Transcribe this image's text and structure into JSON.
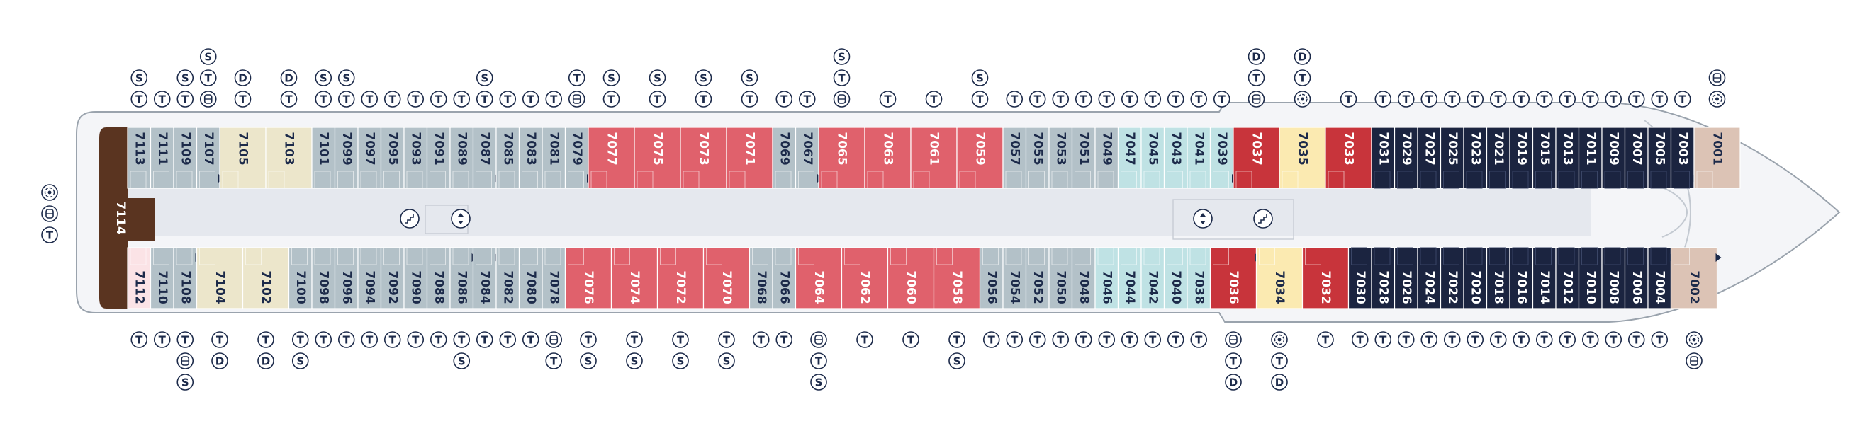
{
  "colors": {
    "suite_red": "#c8343b",
    "premium_pink": "#e0616c",
    "navy": "#1b2440",
    "slate": "#b3c1c8",
    "beige": "#ece6cb",
    "aqua": "#bfe2e4",
    "yellow": "#fbeab1",
    "tan": "#dcc3b5",
    "brown": "#5a3420",
    "light_pink": "#fbe3e6",
    "corridor": "#e5e8ee",
    "outline": "#9aa3ad",
    "symbol": "#1c2a4a"
  },
  "legend_symbols": {
    "T": "twin-beds-symbol",
    "S": "sofa-bed-symbol",
    "D": "double-bed-symbol",
    "accessible": "accessible-cabin-symbol",
    "connecting": "connecting-cabin-symbol"
  },
  "aft_cabin": {
    "label": "7114",
    "color": "brown"
  },
  "aft_symbols": [
    "connecting",
    "accessible",
    "T"
  ],
  "top_row": [
    {
      "label": "7113",
      "color": "slate",
      "syms": [
        "S",
        "T"
      ]
    },
    {
      "label": "7111",
      "color": "slate",
      "syms": [
        "T"
      ]
    },
    {
      "label": "7109",
      "color": "slate",
      "syms": [
        "S",
        "T"
      ]
    },
    {
      "label": "7107",
      "color": "slate",
      "syms": [
        "S",
        "T",
        "accessible"
      ],
      "arrow": true
    },
    {
      "label": "7105",
      "color": "beige",
      "wide": true,
      "syms": [
        "D",
        "T"
      ]
    },
    {
      "label": "7103",
      "color": "beige",
      "wide": true,
      "syms": [
        "D",
        "T"
      ]
    },
    {
      "label": "7101",
      "color": "slate",
      "syms": [
        "S",
        "T"
      ]
    },
    {
      "label": "7099",
      "color": "slate",
      "syms": [
        "S",
        "T"
      ]
    },
    {
      "label": "7097",
      "color": "slate",
      "syms": [
        "T"
      ]
    },
    {
      "label": "7095",
      "color": "slate",
      "syms": [
        "T"
      ]
    },
    {
      "label": "7093",
      "color": "slate",
      "syms": [
        "T"
      ]
    },
    {
      "label": "7091",
      "color": "slate",
      "syms": [
        "T"
      ]
    },
    {
      "label": "7089",
      "color": "slate",
      "syms": [
        "T"
      ]
    },
    {
      "label": "7087",
      "color": "slate",
      "syms": [
        "S",
        "T"
      ],
      "arrow": true
    },
    {
      "label": "7085",
      "color": "slate",
      "syms": [
        "T"
      ]
    },
    {
      "label": "7083",
      "color": "slate",
      "syms": [
        "T"
      ]
    },
    {
      "label": "7081",
      "color": "slate",
      "syms": [
        "T"
      ]
    },
    {
      "label": "7079",
      "color": "slate",
      "syms": [
        "T",
        "accessible"
      ],
      "arrow": true
    },
    {
      "label": "7077",
      "color": "premium_pink",
      "wide": true,
      "syms": [
        "S",
        "T"
      ]
    },
    {
      "label": "7075",
      "color": "premium_pink",
      "wide": true,
      "syms": [
        "S",
        "T"
      ]
    },
    {
      "label": "7073",
      "color": "premium_pink",
      "wide": true,
      "syms": [
        "S",
        "T"
      ]
    },
    {
      "label": "7071",
      "color": "premium_pink",
      "wide": true,
      "syms": [
        "S",
        "T"
      ]
    },
    {
      "label": "7069",
      "color": "slate",
      "syms": [
        "T"
      ]
    },
    {
      "label": "7067",
      "color": "slate",
      "syms": [
        "T"
      ],
      "arrow": true
    },
    {
      "label": "7065",
      "color": "premium_pink",
      "wide": true,
      "syms": [
        "S",
        "T",
        "accessible"
      ]
    },
    {
      "label": "7063",
      "color": "premium_pink",
      "wide": true,
      "syms": [
        "T"
      ]
    },
    {
      "label": "7061",
      "color": "premium_pink",
      "wide": true,
      "syms": [
        "T"
      ]
    },
    {
      "label": "7059",
      "color": "premium_pink",
      "wide": true,
      "syms": [
        "S",
        "T"
      ]
    },
    {
      "label": "7057",
      "color": "slate",
      "syms": [
        "T"
      ]
    },
    {
      "label": "7055",
      "color": "slate",
      "syms": [
        "T"
      ]
    },
    {
      "label": "7053",
      "color": "slate",
      "syms": [
        "T"
      ]
    },
    {
      "label": "7051",
      "color": "slate",
      "syms": [
        "T"
      ]
    },
    {
      "label": "7049",
      "color": "slate",
      "syms": [
        "T"
      ]
    },
    {
      "label": "7047",
      "color": "aqua",
      "syms": [
        "T"
      ]
    },
    {
      "label": "7045",
      "color": "aqua",
      "syms": [
        "T"
      ]
    },
    {
      "label": "7043",
      "color": "aqua",
      "syms": [
        "T"
      ]
    },
    {
      "label": "7041",
      "color": "aqua",
      "syms": [
        "T"
      ]
    },
    {
      "label": "7039",
      "color": "aqua",
      "syms": [
        "T"
      ],
      "arrow": true
    },
    {
      "label": "7037",
      "color": "suite_red",
      "wide": true,
      "syms": [
        "D",
        "T",
        "accessible"
      ]
    },
    {
      "label": "7035",
      "color": "yellow",
      "wide": true,
      "syms": [
        "D",
        "T",
        "connecting"
      ]
    },
    {
      "label": "7033",
      "color": "suite_red",
      "wide": true,
      "syms": [
        "T"
      ]
    },
    {
      "label": "7031",
      "color": "navy",
      "syms": [
        "T"
      ]
    },
    {
      "label": "7029",
      "color": "navy",
      "syms": [
        "T"
      ]
    },
    {
      "label": "7027",
      "color": "navy",
      "syms": [
        "T"
      ]
    },
    {
      "label": "7025",
      "color": "navy",
      "syms": [
        "T"
      ]
    },
    {
      "label": "7023",
      "color": "navy",
      "syms": [
        "T"
      ]
    },
    {
      "label": "7021",
      "color": "navy",
      "syms": [
        "T"
      ]
    },
    {
      "label": "7019",
      "color": "navy",
      "syms": [
        "T"
      ]
    },
    {
      "label": "7015",
      "color": "navy",
      "syms": [
        "T"
      ]
    },
    {
      "label": "7013",
      "color": "navy",
      "syms": [
        "T"
      ]
    },
    {
      "label": "7011",
      "color": "navy",
      "syms": [
        "T"
      ]
    },
    {
      "label": "7009",
      "color": "navy",
      "syms": [
        "T"
      ]
    },
    {
      "label": "7007",
      "color": "navy",
      "syms": [
        "T"
      ]
    },
    {
      "label": "7005",
      "color": "navy",
      "syms": [
        "T"
      ]
    },
    {
      "label": "7003",
      "color": "navy",
      "syms": [
        "T"
      ],
      "arrow": true
    },
    {
      "label": "7001",
      "color": "tan",
      "wide": true,
      "syms": [
        "accessible",
        "connecting"
      ]
    }
  ],
  "bottom_row": [
    {
      "label": "7112",
      "color": "light_pink",
      "syms": [
        "T"
      ]
    },
    {
      "label": "7110",
      "color": "slate",
      "syms": [
        "T"
      ]
    },
    {
      "label": "7108",
      "color": "slate",
      "syms": [
        "T",
        "accessible",
        "S"
      ],
      "arrow": true
    },
    {
      "label": "7104",
      "color": "beige",
      "wide": true,
      "syms": [
        "T",
        "D"
      ]
    },
    {
      "label": "7102",
      "color": "beige",
      "wide": true,
      "syms": [
        "T",
        "D"
      ]
    },
    {
      "label": "7100",
      "color": "slate",
      "syms": [
        "T",
        "S"
      ]
    },
    {
      "label": "7098",
      "color": "slate",
      "syms": [
        "T"
      ]
    },
    {
      "label": "7096",
      "color": "slate",
      "syms": [
        "T"
      ]
    },
    {
      "label": "7094",
      "color": "slate",
      "syms": [
        "T"
      ]
    },
    {
      "label": "7092",
      "color": "slate",
      "syms": [
        "T"
      ]
    },
    {
      "label": "7090",
      "color": "slate",
      "syms": [
        "T"
      ]
    },
    {
      "label": "7088",
      "color": "slate",
      "syms": [
        "T"
      ]
    },
    {
      "label": "7086",
      "color": "slate",
      "syms": [
        "T",
        "S"
      ],
      "arrow": true
    },
    {
      "label": "7084",
      "color": "slate",
      "syms": [
        "T"
      ],
      "arrow": true
    },
    {
      "label": "7082",
      "color": "slate",
      "syms": [
        "T"
      ]
    },
    {
      "label": "7080",
      "color": "slate",
      "syms": [
        "T"
      ]
    },
    {
      "label": "7078",
      "color": "slate",
      "syms": [
        "accessible",
        "T"
      ]
    },
    {
      "label": "7076",
      "color": "premium_pink",
      "wide": true,
      "syms": [
        "T",
        "S"
      ]
    },
    {
      "label": "7074",
      "color": "premium_pink",
      "wide": true,
      "syms": [
        "T",
        "S"
      ]
    },
    {
      "label": "7072",
      "color": "premium_pink",
      "wide": true,
      "syms": [
        "T",
        "S"
      ]
    },
    {
      "label": "7070",
      "color": "premium_pink",
      "wide": true,
      "syms": [
        "T",
        "S"
      ]
    },
    {
      "label": "7068",
      "color": "slate",
      "syms": [
        "T"
      ]
    },
    {
      "label": "7066",
      "color": "slate",
      "syms": [
        "T"
      ]
    },
    {
      "label": "7064",
      "color": "premium_pink",
      "wide": true,
      "syms": [
        "accessible",
        "T",
        "S"
      ]
    },
    {
      "label": "7062",
      "color": "premium_pink",
      "wide": true,
      "syms": [
        "T"
      ]
    },
    {
      "label": "7060",
      "color": "premium_pink",
      "wide": true,
      "syms": [
        "T"
      ]
    },
    {
      "label": "7058",
      "color": "premium_pink",
      "wide": true,
      "syms": [
        "T",
        "S"
      ]
    },
    {
      "label": "7056",
      "color": "slate",
      "syms": [
        "T"
      ]
    },
    {
      "label": "7054",
      "color": "slate",
      "syms": [
        "T"
      ]
    },
    {
      "label": "7052",
      "color": "slate",
      "syms": [
        "T"
      ]
    },
    {
      "label": "7050",
      "color": "slate",
      "syms": [
        "T"
      ]
    },
    {
      "label": "7048",
      "color": "slate",
      "syms": [
        "T"
      ]
    },
    {
      "label": "7046",
      "color": "aqua",
      "syms": [
        "T"
      ]
    },
    {
      "label": "7044",
      "color": "aqua",
      "syms": [
        "T"
      ]
    },
    {
      "label": "7042",
      "color": "aqua",
      "syms": [
        "T"
      ]
    },
    {
      "label": "7040",
      "color": "aqua",
      "syms": [
        "T"
      ]
    },
    {
      "label": "7038",
      "color": "aqua",
      "syms": [
        "T"
      ]
    },
    {
      "label": "7036",
      "color": "suite_red",
      "wide": true,
      "syms": [
        "accessible",
        "T",
        "D"
      ],
      "arrow": true
    },
    {
      "label": "7034",
      "color": "yellow",
      "wide": true,
      "syms": [
        "connecting",
        "T",
        "D"
      ]
    },
    {
      "label": "7032",
      "color": "suite_red",
      "wide": true,
      "syms": [
        "T"
      ]
    },
    {
      "label": "7030",
      "color": "navy",
      "syms": [
        "T"
      ]
    },
    {
      "label": "7028",
      "color": "navy",
      "syms": [
        "T"
      ]
    },
    {
      "label": "7026",
      "color": "navy",
      "syms": [
        "T"
      ]
    },
    {
      "label": "7024",
      "color": "navy",
      "syms": [
        "T"
      ]
    },
    {
      "label": "7022",
      "color": "navy",
      "syms": [
        "T"
      ]
    },
    {
      "label": "7020",
      "color": "navy",
      "syms": [
        "T"
      ]
    },
    {
      "label": "7018",
      "color": "navy",
      "syms": [
        "T"
      ]
    },
    {
      "label": "7016",
      "color": "navy",
      "syms": [
        "T"
      ]
    },
    {
      "label": "7014",
      "color": "navy",
      "syms": [
        "T"
      ]
    },
    {
      "label": "7012",
      "color": "navy",
      "syms": [
        "T"
      ]
    },
    {
      "label": "7010",
      "color": "navy",
      "syms": [
        "T"
      ]
    },
    {
      "label": "7008",
      "color": "navy",
      "syms": [
        "T"
      ]
    },
    {
      "label": "7006",
      "color": "navy",
      "syms": [
        "T"
      ]
    },
    {
      "label": "7004",
      "color": "navy",
      "syms": [
        "T"
      ],
      "arrow": true
    },
    {
      "label": "7002",
      "color": "tan",
      "wide": true,
      "syms": [
        "connecting",
        "accessible"
      ],
      "arrow": true
    }
  ],
  "amenities": [
    {
      "name": "stairs-icon",
      "position": "aft"
    },
    {
      "name": "elevator-icon",
      "position": "aft"
    },
    {
      "name": "elevator-icon",
      "position": "midship"
    },
    {
      "name": "stairs-icon",
      "position": "midship"
    }
  ]
}
